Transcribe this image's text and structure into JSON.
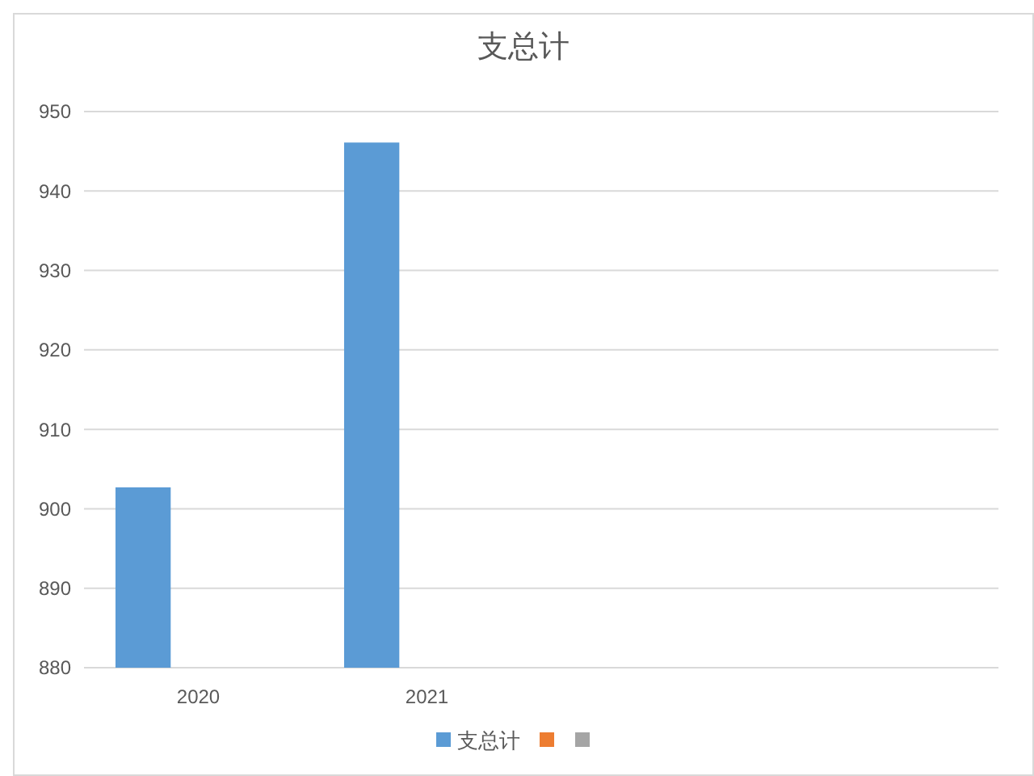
{
  "chart_data": {
    "type": "bar",
    "title": "支总计",
    "categories": [
      "2020",
      "2021",
      null,
      null
    ],
    "series": [
      {
        "name": "支总计",
        "color": "#5b9bd5",
        "values": [
          902.7,
          946.1,
          null,
          null
        ]
      },
      {
        "color": "#ed7d31",
        "values": [
          null,
          null,
          null,
          null
        ]
      },
      {
        "color": "#a5a5a5",
        "values": [
          null,
          null,
          null,
          null
        ]
      }
    ],
    "ylim": [
      880,
      950
    ],
    "yticks": [
      880,
      890,
      900,
      910,
      920,
      930,
      940,
      950
    ],
    "grid": "y",
    "legend": "bottom"
  }
}
